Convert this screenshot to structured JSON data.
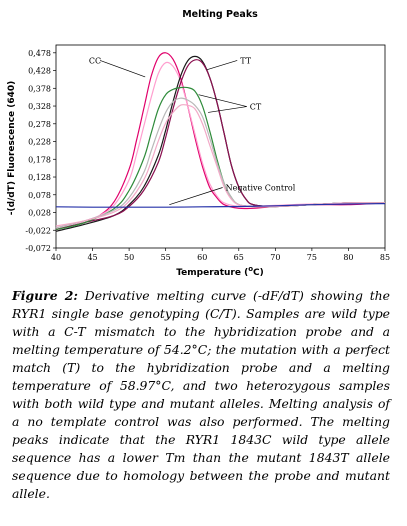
{
  "chart_data": {
    "type": "line",
    "title": "Melting Peaks",
    "xlabel": "Temperature (°C)",
    "xlabel_main": "Temperature (",
    "xlabel_unit_sup": "o",
    "xlabel_unit_tail": "C)",
    "ylabel": "-(d/dT) Fluorescence (640)",
    "xlim": [
      40,
      85
    ],
    "ylim": [
      -0.072,
      0.5
    ],
    "x_ticks": [
      "40",
      "45",
      "50",
      "55",
      "60",
      "65",
      "70",
      "75",
      "80",
      "85"
    ],
    "y_ticks": [
      "0,478",
      "0,428",
      "0,378",
      "0,328",
      "0,278",
      "0,228",
      "0,178",
      "0,128",
      "0,078",
      "0,028",
      "-0,022",
      "-0,072"
    ],
    "series": [
      {
        "name": "CC",
        "color": "#e0006b",
        "x": [
          40,
          42,
          44,
          46,
          48,
          50,
          51,
          52,
          53,
          54,
          55,
          56,
          57,
          58,
          59,
          60,
          61,
          62,
          63,
          65,
          67,
          70,
          75,
          80,
          85
        ],
        "y": [
          -0.02,
          -0.01,
          0.0,
          0.02,
          0.06,
          0.15,
          0.23,
          0.32,
          0.41,
          0.465,
          0.478,
          0.46,
          0.41,
          0.33,
          0.24,
          0.16,
          0.1,
          0.07,
          0.05,
          0.04,
          0.04,
          0.045,
          0.05,
          0.05,
          0.055
        ]
      },
      {
        "name": "CC",
        "color": "#ff9fcf",
        "x": [
          40,
          42,
          44,
          46,
          48,
          50,
          51,
          52,
          53,
          54,
          55,
          56,
          57,
          58,
          59,
          60,
          61,
          62,
          63,
          65,
          67,
          70,
          75,
          80,
          85
        ],
        "y": [
          -0.015,
          -0.005,
          0.005,
          0.02,
          0.05,
          0.12,
          0.19,
          0.27,
          0.35,
          0.42,
          0.45,
          0.44,
          0.4,
          0.33,
          0.25,
          0.17,
          0.11,
          0.075,
          0.055,
          0.045,
          0.045,
          0.048,
          0.052,
          0.053,
          0.056
        ]
      },
      {
        "name": "TT",
        "color": "#1a1a1a",
        "x": [
          40,
          44,
          48,
          50,
          52,
          54,
          55,
          56,
          57,
          58,
          59,
          60,
          61,
          62,
          63,
          64,
          65,
          66,
          67,
          70,
          75,
          80,
          85
        ],
        "y": [
          -0.025,
          -0.005,
          0.02,
          0.05,
          0.1,
          0.19,
          0.26,
          0.34,
          0.41,
          0.455,
          0.468,
          0.455,
          0.41,
          0.34,
          0.25,
          0.16,
          0.1,
          0.065,
          0.05,
          0.045,
          0.05,
          0.055,
          0.055
        ]
      },
      {
        "name": "TT",
        "color": "#8a1050",
        "x": [
          40,
          44,
          48,
          50,
          52,
          54,
          55,
          56,
          57,
          58,
          59,
          60,
          61,
          62,
          63,
          64,
          65,
          66,
          67,
          70,
          75,
          80,
          85
        ],
        "y": [
          -0.02,
          0.0,
          0.02,
          0.045,
          0.09,
          0.17,
          0.24,
          0.32,
          0.39,
          0.44,
          0.458,
          0.45,
          0.41,
          0.34,
          0.25,
          0.16,
          0.1,
          0.065,
          0.05,
          0.045,
          0.05,
          0.055,
          0.055
        ]
      },
      {
        "name": "CT",
        "color": "#2e8b3a",
        "x": [
          40,
          44,
          48,
          50,
          52,
          53,
          54,
          55,
          56,
          57,
          58,
          59,
          60,
          61,
          62,
          63,
          64,
          65,
          67,
          70,
          75,
          80,
          85
        ],
        "y": [
          -0.02,
          0.0,
          0.04,
          0.09,
          0.18,
          0.25,
          0.32,
          0.36,
          0.375,
          0.38,
          0.38,
          0.37,
          0.33,
          0.26,
          0.18,
          0.11,
          0.07,
          0.05,
          0.045,
          0.045,
          0.05,
          0.055,
          0.055
        ]
      },
      {
        "name": "CT",
        "color": "#b8b8b8",
        "x": [
          40,
          44,
          48,
          50,
          52,
          53,
          54,
          55,
          56,
          57,
          58,
          59,
          60,
          61,
          62,
          63,
          64,
          65,
          67,
          70,
          75,
          80,
          85
        ],
        "y": [
          -0.015,
          0.005,
          0.035,
          0.07,
          0.14,
          0.2,
          0.26,
          0.31,
          0.34,
          0.35,
          0.345,
          0.33,
          0.3,
          0.24,
          0.17,
          0.11,
          0.07,
          0.05,
          0.045,
          0.045,
          0.05,
          0.055,
          0.055
        ]
      },
      {
        "name": "CT",
        "color": "#f2a9c7",
        "x": [
          40,
          44,
          48,
          50,
          52,
          53,
          54,
          55,
          56,
          57,
          58,
          59,
          60,
          61,
          62,
          63,
          64,
          65,
          67,
          70,
          75,
          80,
          85
        ],
        "y": [
          -0.01,
          0.005,
          0.03,
          0.06,
          0.12,
          0.17,
          0.23,
          0.28,
          0.31,
          0.33,
          0.33,
          0.32,
          0.28,
          0.22,
          0.16,
          0.1,
          0.065,
          0.05,
          0.045,
          0.045,
          0.05,
          0.055,
          0.055
        ]
      },
      {
        "name": "Negative Control",
        "color": "#2430a8",
        "x": [
          40,
          45,
          50,
          55,
          60,
          65,
          70,
          75,
          80,
          85
        ],
        "y": [
          0.044,
          0.043,
          0.043,
          0.043,
          0.044,
          0.045,
          0.047,
          0.05,
          0.052,
          0.053
        ]
      }
    ],
    "annotations": [
      {
        "text": "CC",
        "x": 44.5,
        "y": 0.448,
        "to_x": 52.2,
        "to_y": 0.41
      },
      {
        "text": "TT",
        "x": 65.2,
        "y": 0.448,
        "to_x": 60.6,
        "to_y": 0.43
      },
      {
        "text": "CT",
        "x": 66.5,
        "y": 0.318,
        "to_x": 59.5,
        "to_y": 0.36
      },
      {
        "text": "CT",
        "x": 66.5,
        "y": 0.318,
        "to_x": 60.8,
        "to_y": 0.31
      },
      {
        "text": "Negative Control",
        "x": 63.2,
        "y": 0.09,
        "to_x": 55.5,
        "to_y": 0.05
      }
    ]
  },
  "caption": {
    "label": "Figure 2:",
    "text": " Derivative melting curve (-dF/dT) showing the RYR1 single base genotyping (C/T). Samples are wild type with a C-T mismatch to the hybridization probe and a melting temperature of 54.2°C; the mutation with a perfect match (T) to the hybridization probe and a melting temperature of 58.97°C, and two heterozygous samples with both wild type and mutant alleles. Melting analysis of a no template control was also performed. The melting peaks indicate that the RYR1 1843C wild type allele sequence has a lower Tm than the mutant 1843T allele sequence due to homology between the probe and mutant allele."
  }
}
